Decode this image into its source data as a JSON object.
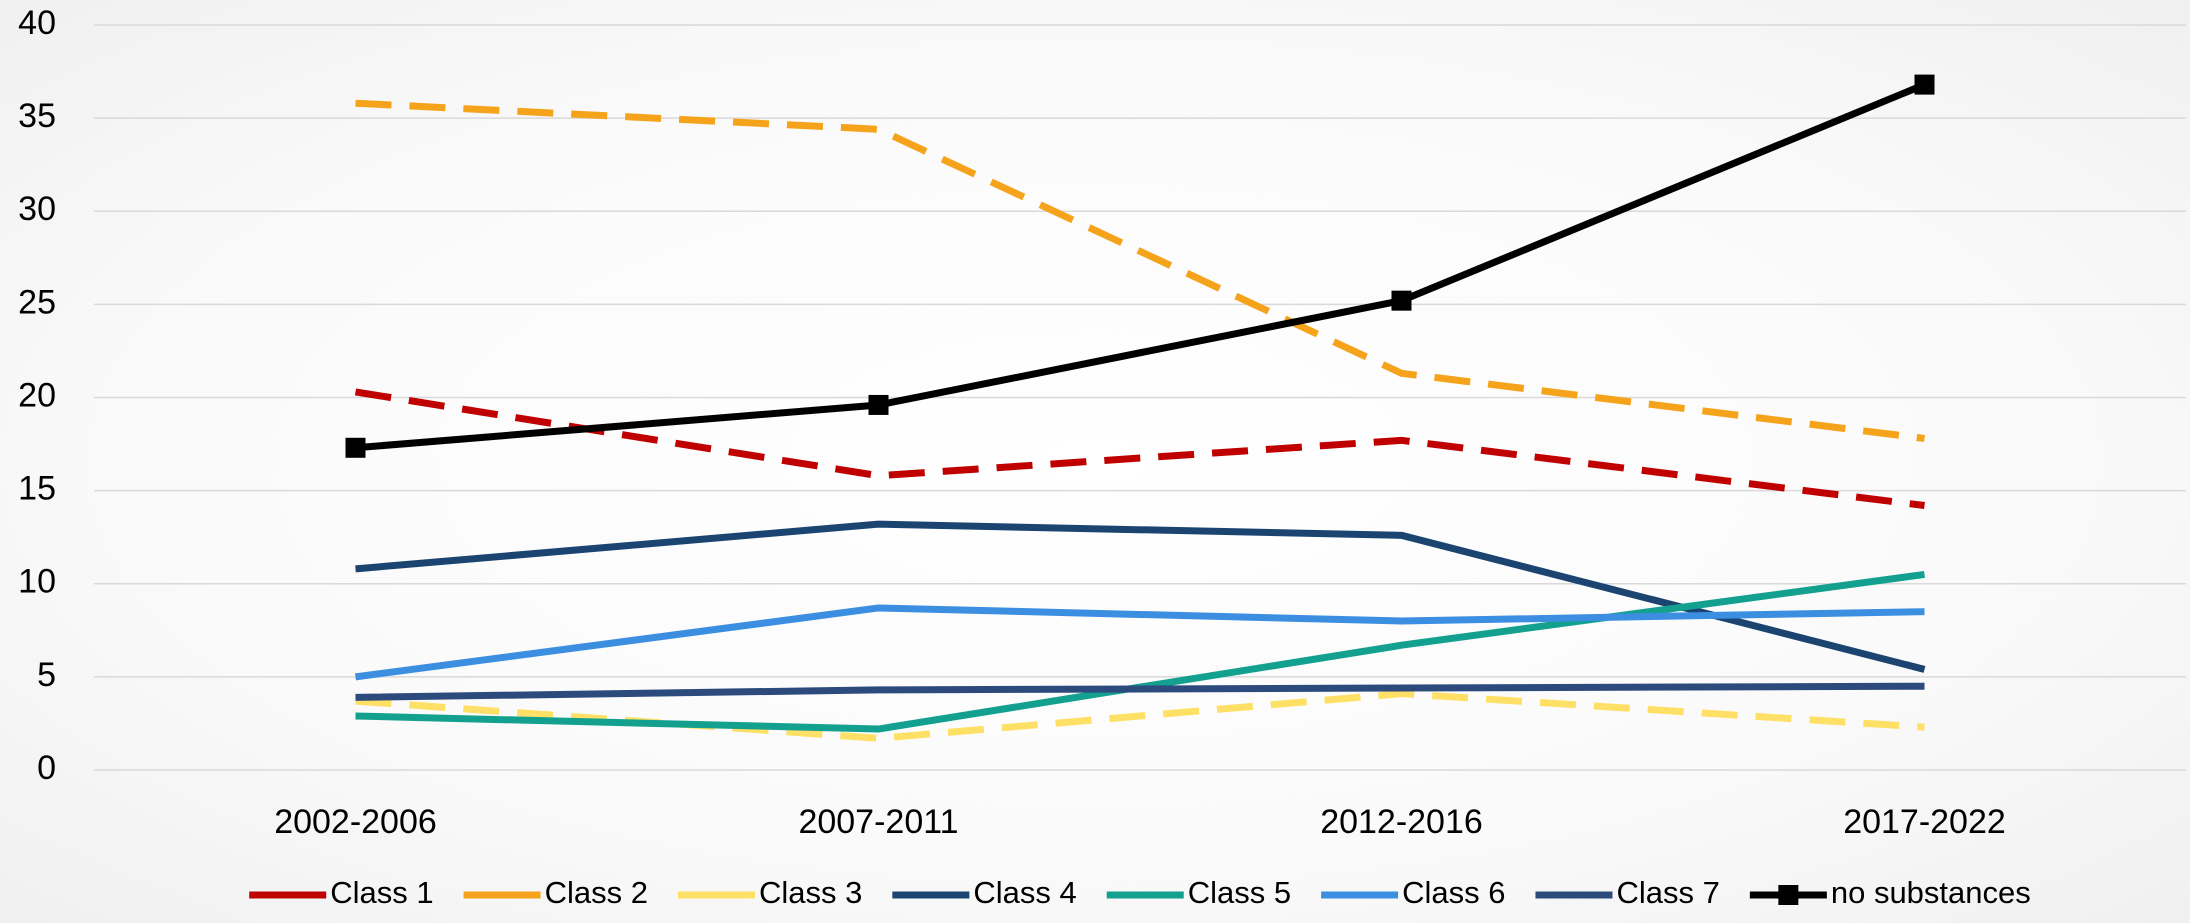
{
  "chart_data": {
    "type": "line",
    "categories": [
      "2002-2006",
      "2007-2011",
      "2012-2016",
      "2017-2022"
    ],
    "series": [
      {
        "name": "Class 1",
        "color": "#c00000",
        "dashed": true,
        "values": [
          20.3,
          15.8,
          17.7,
          14.2
        ]
      },
      {
        "name": "Class 2",
        "color": "#f5a31a",
        "dashed": true,
        "values": [
          35.8,
          34.4,
          21.3,
          17.8
        ]
      },
      {
        "name": "Class 3",
        "color": "#ffe066",
        "dashed": true,
        "values": [
          3.7,
          1.7,
          4.1,
          2.3
        ]
      },
      {
        "name": "Class 4",
        "color": "#1b4470",
        "dashed": false,
        "values": [
          10.8,
          13.2,
          12.6,
          5.4
        ]
      },
      {
        "name": "Class 5",
        "color": "#13a08f",
        "dashed": false,
        "values": [
          2.9,
          2.2,
          6.7,
          10.5
        ]
      },
      {
        "name": "Class 6",
        "color": "#3b8ee0",
        "dashed": false,
        "values": [
          5.0,
          8.7,
          8.0,
          8.5
        ]
      },
      {
        "name": "Class 7",
        "color": "#2c4a7c",
        "dashed": false,
        "values": [
          3.9,
          4.3,
          4.4,
          4.5
        ]
      },
      {
        "name": "no substances",
        "color": "#000000",
        "dashed": false,
        "marker": "square",
        "values": [
          17.3,
          19.6,
          25.2,
          36.8
        ]
      }
    ],
    "ylim": [
      0,
      40
    ],
    "yticks": [
      0,
      5,
      10,
      15,
      20,
      25,
      30,
      35,
      40
    ],
    "grid": true,
    "legend": "bottom"
  }
}
